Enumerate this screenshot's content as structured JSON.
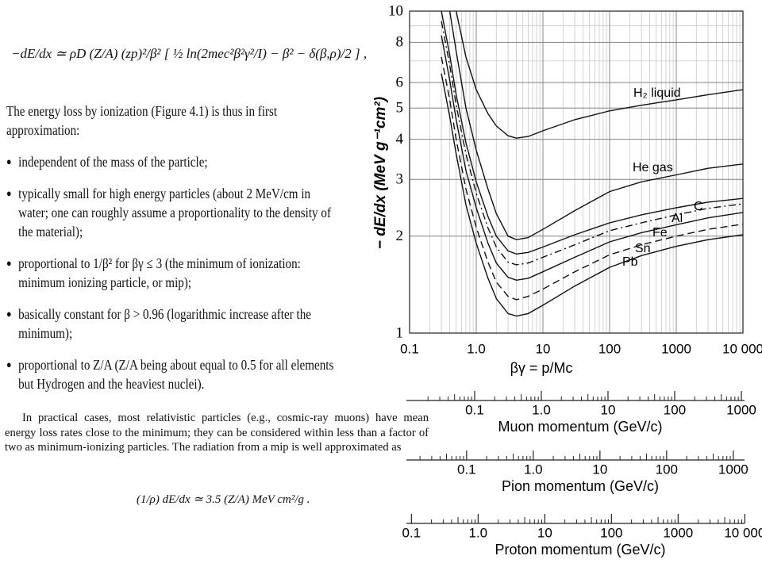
{
  "text": {
    "formula_top": "−dE/dx ≃ ρD (Z/A) (zp)²/β² [ ½ ln(2mec²β²γ²/I) − β² − δ(β,ρ)/2 ] ,",
    "intro": "The energy loss by ionization (Figure 4.1) is thus in first approximation:",
    "bullets": [
      "independent of the mass of the particle;",
      "typically small for high energy particles (about 2 MeV/cm in water; one can roughly assume a proportionality to the density of the material);",
      "proportional to 1/β² for βγ ≤ 3 (the minimum of ionization: minimum ionizing particle, or mip);",
      "basically constant for β > 0.96 (logarithmic increase after the minimum);",
      "proportional to Z/A (Z/A being about equal to 0.5 for all elements but Hydrogen and the heaviest nuclei)."
    ],
    "paragraph": "In practical cases, most relativistic particles (e.g., cosmic-ray muons) have mean energy loss rates close to the minimum; they can be considered within less than a factor of two as minimum-ionizing particles. The radiation from a mip is well approximated as",
    "formula_bottom": "(1/ρ) dE/dx ≃ 3.5 (Z/A) MeV cm²/g ."
  },
  "chart_data": {
    "type": "line",
    "y_label": "− dE/dx (MeV g⁻¹cm²)",
    "x_label": "βγ = p/Mc",
    "xlog": true,
    "ylog": true,
    "grid": true,
    "xlim": [
      0.1,
      10000
    ],
    "ylim": [
      1,
      10
    ],
    "xticks": [
      0.1,
      {
        "value": 1,
        "label": "1.0"
      },
      10,
      100,
      1000,
      {
        "value": 10000,
        "label": "10 000"
      }
    ],
    "yticks": [
      1,
      2,
      3,
      4,
      5,
      6,
      8,
      10
    ],
    "x": [
      0.3,
      0.4,
      0.5,
      0.7,
      1,
      1.5,
      2,
      3,
      4,
      6,
      10,
      30,
      100,
      300,
      1000,
      3000,
      10000
    ],
    "series": [
      {
        "name": "H₂ liquid",
        "color": "#111111",
        "dash": "solid",
        "values": [
          null,
          null,
          10,
          7.2,
          5.7,
          4.8,
          4.4,
          4.1,
          4.03,
          4.08,
          4.25,
          4.6,
          4.9,
          5.1,
          5.3,
          5.5,
          5.7
        ]
      },
      {
        "name": "He gas",
        "color": "#111111",
        "dash": "solid",
        "values": [
          null,
          10,
          7.5,
          5,
          3.7,
          2.8,
          2.35,
          2.0,
          1.95,
          1.98,
          2.1,
          2.4,
          2.75,
          2.95,
          3.1,
          3.25,
          3.35
        ]
      },
      {
        "name": "C",
        "color": "#111111",
        "dash": "solid",
        "values": [
          10,
          7.3,
          5.5,
          3.9,
          2.95,
          2.3,
          2.0,
          1.8,
          1.76,
          1.78,
          1.85,
          2.02,
          2.2,
          2.33,
          2.45,
          2.55,
          2.62
        ]
      },
      {
        "name": "Al",
        "color": "#111111",
        "dash": "dashdot",
        "values": [
          9.3,
          6.8,
          5.1,
          3.6,
          2.72,
          2.12,
          1.85,
          1.66,
          1.63,
          1.65,
          1.72,
          1.88,
          2.08,
          2.2,
          2.33,
          2.44,
          2.52
        ]
      },
      {
        "name": "Fe",
        "color": "#111111",
        "dash": "solid",
        "values": [
          8.4,
          6.1,
          4.6,
          3.2,
          2.45,
          1.9,
          1.65,
          1.49,
          1.46,
          1.48,
          1.55,
          1.72,
          1.92,
          2.05,
          2.17,
          2.28,
          2.37
        ]
      },
      {
        "name": "Sn",
        "color": "#111111",
        "dash": "dashed",
        "values": [
          7.2,
          5.3,
          4.0,
          2.8,
          2.13,
          1.66,
          1.44,
          1.3,
          1.27,
          1.3,
          1.37,
          1.55,
          1.75,
          1.88,
          2.0,
          2.1,
          2.18
        ]
      },
      {
        "name": "Pb",
        "color": "#111111",
        "dash": "solid",
        "values": [
          6.4,
          4.7,
          3.6,
          2.5,
          1.9,
          1.48,
          1.28,
          1.15,
          1.13,
          1.15,
          1.22,
          1.4,
          1.6,
          1.74,
          1.86,
          1.95,
          2.02
        ]
      }
    ],
    "momentum_axes": [
      {
        "label": "Muon momentum (GeV/c)",
        "xlim": [
          0.01057,
          1057
        ],
        "ticks": [
          0.1,
          {
            "value": 1,
            "label": "1.0"
          },
          10,
          100,
          1000
        ]
      },
      {
        "label": "Pion momentum (GeV/c)",
        "xlim": [
          0.01396,
          1396
        ],
        "ticks": [
          0.1,
          {
            "value": 1,
            "label": "1.0"
          },
          10,
          100,
          1000
        ]
      },
      {
        "label": "Proton momentum (GeV/c)",
        "xlim": [
          0.0938,
          9380
        ],
        "ticks": [
          0.1,
          {
            "value": 1,
            "label": "1.0"
          },
          10,
          100,
          1000,
          {
            "value": 10000,
            "label": "10 000"
          }
        ]
      }
    ]
  }
}
